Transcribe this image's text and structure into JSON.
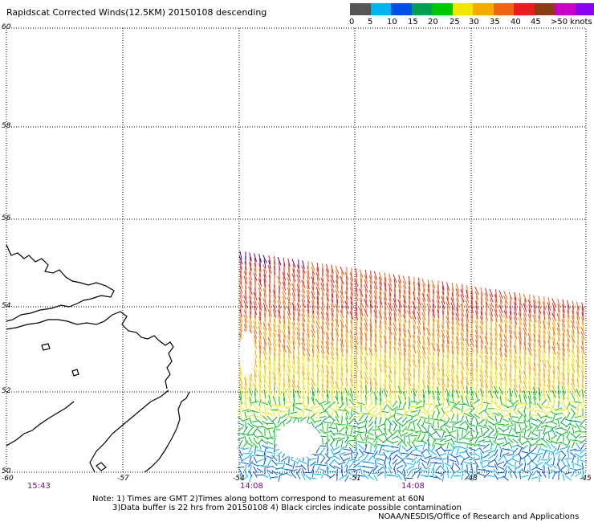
{
  "title": "Rapidscat Corrected Winds(12.5KM) 20150108 descending",
  "legend": {
    "colors": [
      "#555555",
      "#00b4f0",
      "#0050e6",
      "#00a050",
      "#00c800",
      "#f0e600",
      "#f5aa00",
      "#f06414",
      "#e61e1e",
      "#8c3c14",
      "#c800c8",
      "#8c00f0",
      "#50007d"
    ],
    "labels": [
      "0",
      "5",
      "10",
      "15",
      "20",
      "25",
      "30",
      "35",
      "40",
      "45",
      ">50 knots"
    ]
  },
  "latitudes": [
    "60",
    "58",
    "56",
    "54",
    "52",
    "50"
  ],
  "longitudes": [
    "-60",
    "-57",
    "-54",
    "-51",
    "-48",
    "-45"
  ],
  "times": [
    "15:43",
    "14:08",
    "14:08"
  ],
  "notes": {
    "line1": "Note: 1) Times are GMT 2)Times along bottom correspond to measurement at 60N",
    "line2": "3)Data buffer is 22 hrs from 20150108 4) Black circles indicate possible contamination",
    "line3": "NOAA/NESDIS/Office of Research and Applications"
  }
}
